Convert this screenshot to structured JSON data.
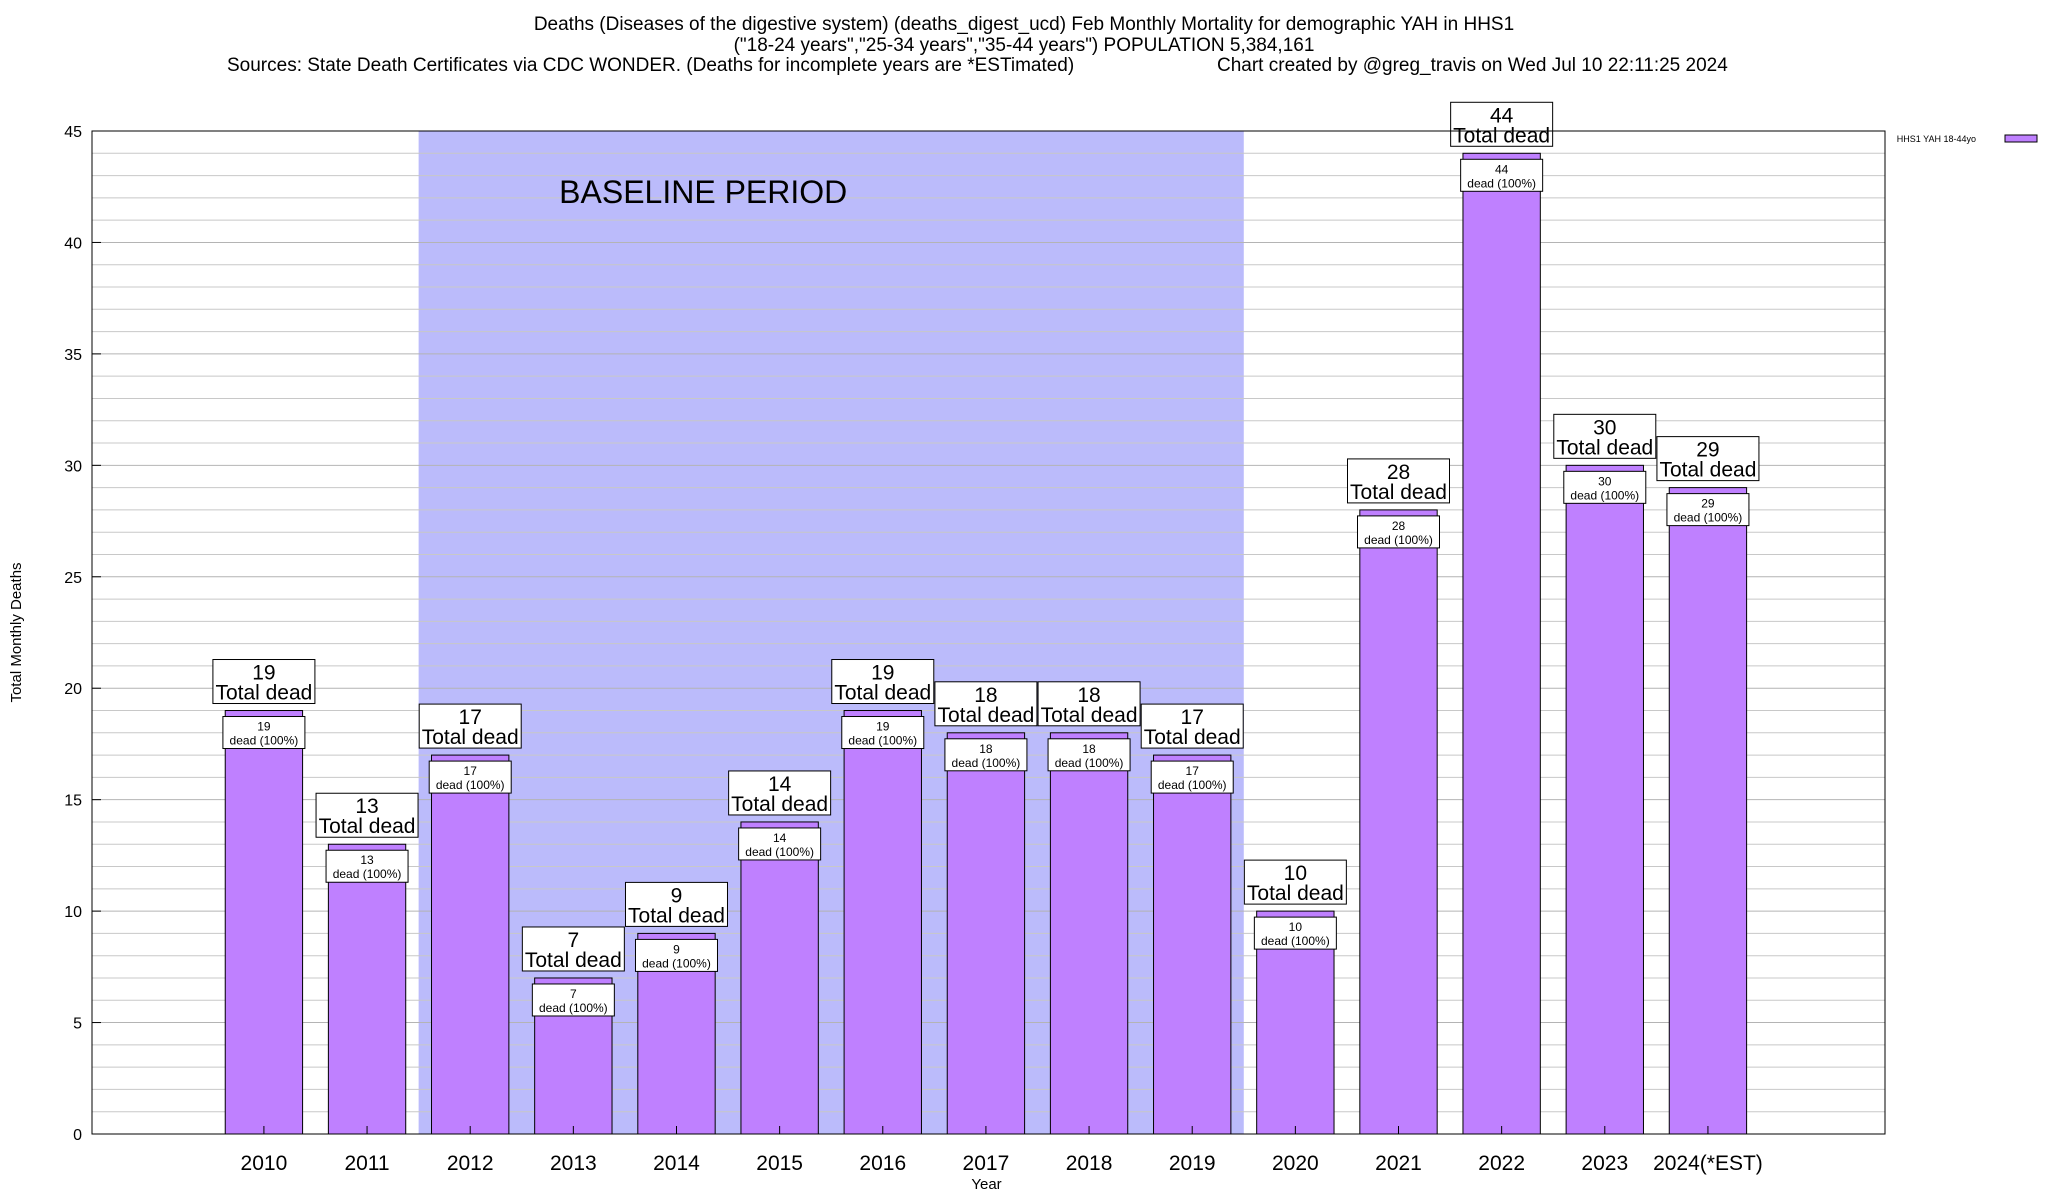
{
  "header": {
    "title": "Deaths (Diseases of the digestive system) (deaths_digest_ucd) Feb Monthly Mortality for demographic YAH in HHS1",
    "subtitle": "(\"18-24 years\",\"25-34 years\",\"35-44 years\") POPULATION 5,384,161",
    "sources": "Sources: State Death Certificates via CDC WONDER. (Deaths for incomplete years are *ESTimated)",
    "credit": "Chart created by @greg_travis on Wed Jul 10 22:11:25 2024"
  },
  "chart_data": {
    "type": "bar",
    "xlabel": "Year",
    "ylabel": "Total Monthly Deaths",
    "ylim": [
      0,
      45
    ],
    "ytick_step": 5,
    "yminor_step": 1,
    "grid": true,
    "legend": "top-right",
    "categories": [
      "2010",
      "2011",
      "2012",
      "2013",
      "2014",
      "2015",
      "2016",
      "2017",
      "2018",
      "2019",
      "2020",
      "2021",
      "2022",
      "2023",
      "2024(*EST)"
    ],
    "series": [
      {
        "name": "HHS1 YAH 18-44yo",
        "values": [
          19,
          13,
          17,
          7,
          9,
          14,
          19,
          18,
          18,
          17,
          10,
          28,
          44,
          30,
          29
        ]
      }
    ],
    "total_label": "Total dead",
    "inner_label_suffix": "dead (100%)",
    "baseline": {
      "label": "BASELINE PERIOD",
      "start": "2012",
      "end": "2019"
    },
    "colors": {
      "bar": "#bf80ff",
      "baseline": "#bbbbfb",
      "grid": "#c8c8c8"
    }
  }
}
